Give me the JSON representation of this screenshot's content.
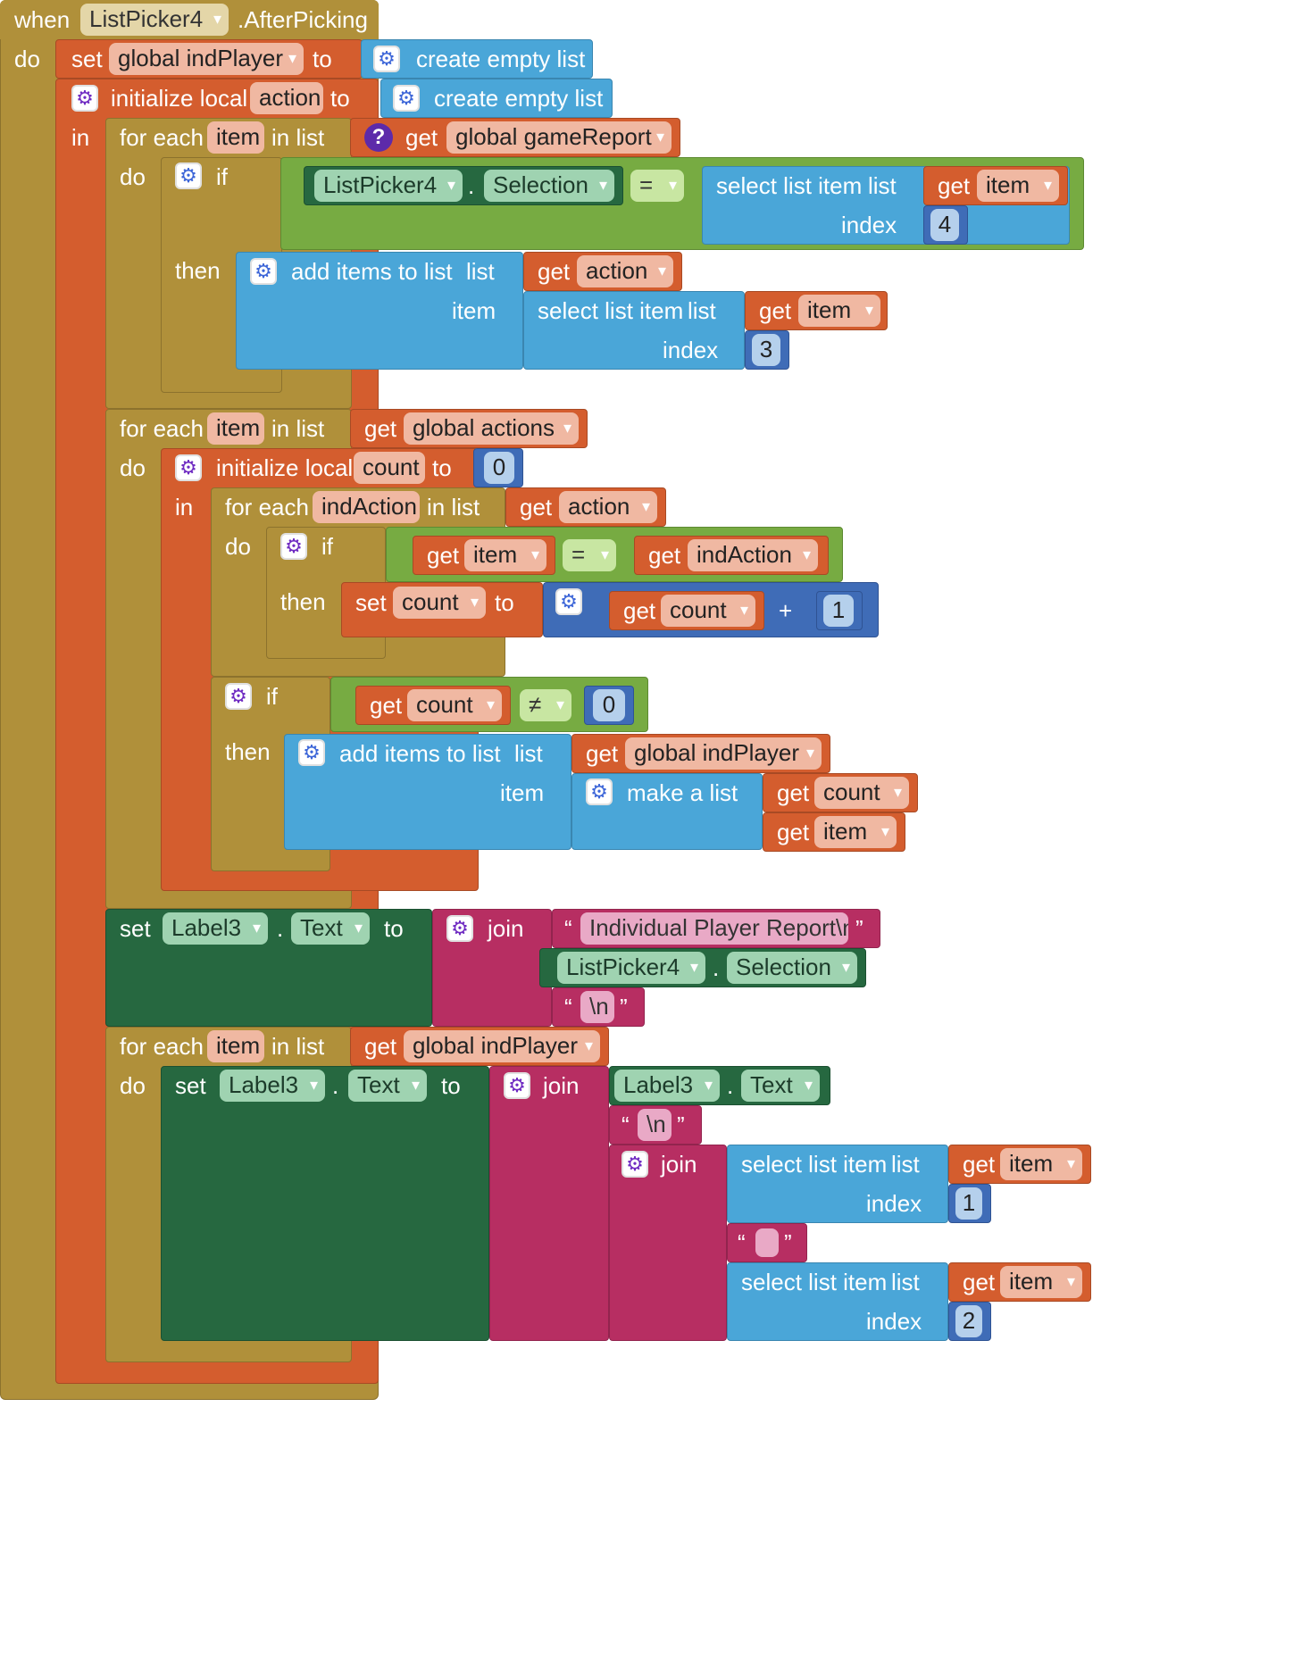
{
  "palette": {
    "event": "#b0903a",
    "variables": "#d45d2e",
    "lists": "#4aa6d8",
    "logic": "#77ab42",
    "text": "#b72e62",
    "component": "#266840",
    "math": "#3f6cb7"
  },
  "event_block": {
    "when_keyword": "when",
    "component": "ListPicker4",
    "event": ".AfterPicking",
    "do_keyword": "do"
  },
  "set_indplayer": {
    "set_keyword": "set",
    "variable": "global indPlayer",
    "to_keyword": "to",
    "value": "create empty list"
  },
  "init_action": {
    "keyword": "initialize local",
    "name": "action",
    "to_keyword": "to",
    "value": "create empty list",
    "in_keyword": "in"
  },
  "loop1": {
    "for_each": "for each",
    "var": "item",
    "in_list": "in list",
    "get": "get",
    "list_var": "global gameReport",
    "help_icon": "?",
    "do_keyword": "do",
    "if_keyword": "if",
    "then_keyword": "then",
    "cond_component": "ListPicker4",
    "cond_dot": ".",
    "cond_property": "Selection",
    "cond_op": "=",
    "select_list_item": "select list item",
    "list_label": "list",
    "index_label": "index",
    "get_var": "item",
    "index_value": "4",
    "add_items": "add items to list",
    "add_list_label": "list",
    "add_item_label": "item",
    "add_list_var": "action",
    "sel_index_value": "3"
  },
  "loop2": {
    "for_each": "for each",
    "var": "item",
    "in_list": "in list",
    "get": "get",
    "list_var": "global actions",
    "do_keyword": "do",
    "init_keyword": "initialize local",
    "init_name": "count",
    "init_to": "to",
    "init_value": "0",
    "in_keyword": "in",
    "inner_for_each": "for each",
    "inner_var": "indAction",
    "inner_in_list": "in list",
    "inner_list_var": "action",
    "inner_do": "do",
    "if_keyword": "if",
    "then_keyword": "then",
    "cmp_left": "item",
    "cmp_op": "=",
    "cmp_right": "indAction",
    "set_keyword": "set",
    "set_var": "count",
    "set_to": "to",
    "add_left": "count",
    "add_op": "+",
    "add_right": "1",
    "if2_keyword": "if",
    "then2_keyword": "then",
    "neq_left": "count",
    "neq_op": "≠",
    "neq_right": "0",
    "add_items": "add items to list",
    "list_label": "list",
    "item_label": "item",
    "add_list_var": "global indPlayer",
    "make_a_list": "make a list",
    "make_item1": "count",
    "make_item2": "item"
  },
  "set_label": {
    "set_keyword": "set",
    "component": "Label3",
    "dot": ".",
    "property": "Text",
    "to_keyword": "to",
    "join": "join",
    "quote_open": "“",
    "quote_close": "”",
    "text1": "Individual Player Report\\n",
    "sel_component": "ListPicker4",
    "sel_property": "Selection",
    "text2": "\\n"
  },
  "loop3": {
    "for_each": "for each",
    "var": "item",
    "in_list": "in list",
    "get": "get",
    "list_var": "global indPlayer",
    "do_keyword": "do",
    "set_keyword": "set",
    "component": "Label3",
    "dot": ".",
    "property": "Text",
    "to_keyword": "to",
    "join": "join",
    "join_component": "Label3",
    "join_property": "Text",
    "newline": "\\n",
    "inner_join": "join",
    "select_list_item": "select list item",
    "list_label": "list",
    "index_label": "index",
    "get_var": "item",
    "index1": "1",
    "space_text": "",
    "index2": "2"
  }
}
